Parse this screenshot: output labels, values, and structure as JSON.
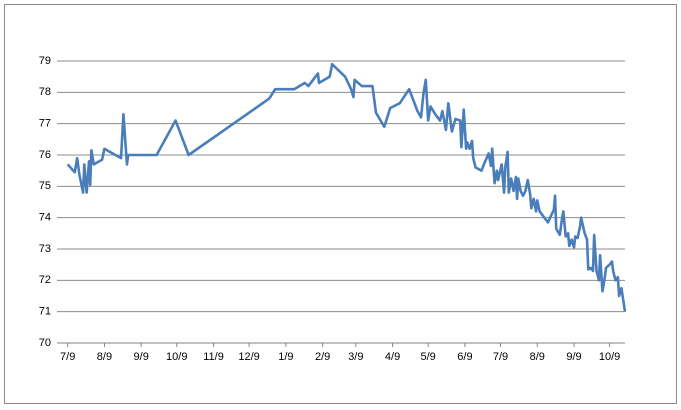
{
  "chart_data": {
    "type": "line",
    "x": [
      0,
      6,
      8,
      10,
      13,
      14,
      16,
      18,
      19,
      20,
      22,
      29,
      31,
      45,
      47,
      50,
      51,
      75,
      91,
      102,
      170,
      175,
      191,
      200,
      203,
      211,
      212,
      221,
      223,
      234,
      239,
      241,
      242,
      248,
      257,
      260,
      267,
      272,
      280,
      288,
      295,
      298,
      300,
      302,
      304,
      306,
      310,
      314,
      316,
      319,
      321,
      324,
      327,
      331,
      332,
      334,
      336,
      337,
      339,
      341,
      342,
      344,
      349,
      351,
      355,
      357,
      358,
      360,
      362,
      363,
      366,
      368,
      369,
      371,
      372,
      374,
      376,
      378,
      379,
      380,
      382,
      384,
      386,
      388,
      390,
      391,
      393,
      395,
      396,
      398,
      402,
      405,
      410,
      411,
      412,
      415,
      417,
      418,
      420,
      422,
      423,
      425,
      427,
      428,
      430,
      432,
      433,
      436,
      438,
      439,
      441,
      443,
      444,
      446,
      448,
      449,
      451,
      453,
      454,
      457,
      459,
      460,
      462,
      464,
      465,
      467,
      470
    ],
    "series": [
      {
        "color": "#4a7ebb",
        "values": [
          75.7,
          75.45,
          75.9,
          75.35,
          74.8,
          75.7,
          74.8,
          75.8,
          75.05,
          76.15,
          75.7,
          75.85,
          76.2,
          75.9,
          77.3,
          75.7,
          76,
          76,
          77.1,
          76,
          77.8,
          78.1,
          78.1,
          78.3,
          78.2,
          78.6,
          78.3,
          78.5,
          78.9,
          78.5,
          78.1,
          77.85,
          78.4,
          78.2,
          78.2,
          77.35,
          76.9,
          77.5,
          77.65,
          78.1,
          77.4,
          77.2,
          77.95,
          78.4,
          77.1,
          77.55,
          77.3,
          77.1,
          77.4,
          76.8,
          77.65,
          76.75,
          77.15,
          77.1,
          76.25,
          77.45,
          76.2,
          76.4,
          76.2,
          76.45,
          75.9,
          75.6,
          75.5,
          75.7,
          76.05,
          75.65,
          76.2,
          75.1,
          75.5,
          75.2,
          75.7,
          74.8,
          75.6,
          76.1,
          74.8,
          75.25,
          74.85,
          75.3,
          74.6,
          75.25,
          74.85,
          74.7,
          74.85,
          75.2,
          74.75,
          74.3,
          74.6,
          74.2,
          74.55,
          74.2,
          74.0,
          73.85,
          74.25,
          74.7,
          73.65,
          73.45,
          74.0,
          74.2,
          73.4,
          73.5,
          73.1,
          73.3,
          73.05,
          73.4,
          73.35,
          73.7,
          74.0,
          73.5,
          73.3,
          72.35,
          72.4,
          72.3,
          73.45,
          72.3,
          72.0,
          72.8,
          71.65,
          72.1,
          72.4,
          72.5,
          72.6,
          72.3,
          72.0,
          72.1,
          71.5,
          71.75,
          71.0
        ]
      }
    ],
    "xlim": [
      -9,
      470
    ],
    "xticks": [
      {
        "value": 0,
        "label": "7/9"
      },
      {
        "value": 31,
        "label": "8/9"
      },
      {
        "value": 62,
        "label": "9/9"
      },
      {
        "value": 92,
        "label": "10/9"
      },
      {
        "value": 123,
        "label": "11/9"
      },
      {
        "value": 153,
        "label": "12/9"
      },
      {
        "value": 184,
        "label": "1/9"
      },
      {
        "value": 215,
        "label": "2/9"
      },
      {
        "value": 243,
        "label": "3/9"
      },
      {
        "value": 274,
        "label": "4/9"
      },
      {
        "value": 304,
        "label": "5/9"
      },
      {
        "value": 335,
        "label": "6/9"
      },
      {
        "value": 365,
        "label": "7/9"
      },
      {
        "value": 396,
        "label": "8/9"
      },
      {
        "value": 427,
        "label": "9/9"
      },
      {
        "value": 457,
        "label": "10/9"
      }
    ],
    "ylim": [
      70,
      79
    ],
    "yticks": [
      70,
      71,
      72,
      73,
      74,
      75,
      76,
      77,
      78,
      79
    ],
    "grid": true
  }
}
